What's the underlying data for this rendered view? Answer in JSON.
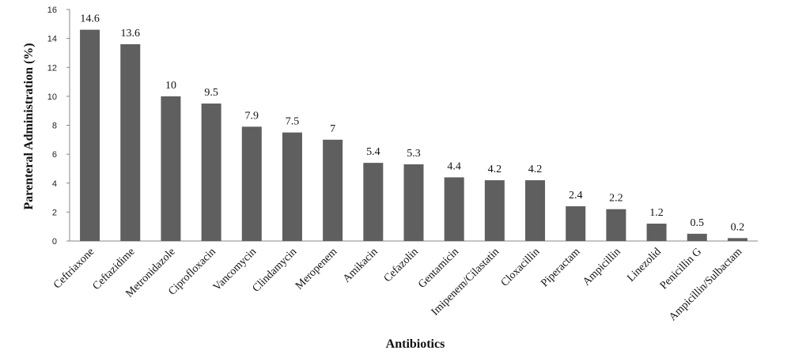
{
  "chart_data": {
    "type": "bar",
    "title": "",
    "xlabel": "Antibiotics",
    "ylabel": "Parenteral Administration (%)",
    "ylim": [
      0,
      16
    ],
    "yticks": [
      0,
      2,
      4,
      6,
      8,
      10,
      12,
      14,
      16
    ],
    "grid": false,
    "legend": "none",
    "bar_color": "#5f5f5f",
    "categories": [
      "Ceftriaxone",
      "Ceftazidime",
      "Metronidazole",
      "Ciprofloxacin",
      "Vancomycin",
      "Clindamycin",
      "Meropenem",
      "Amikacin",
      "Cefazolin",
      "Gentamicin",
      "Imipenem/Cilastatin",
      "Cloxacillin",
      "Piperactam",
      "Ampicillin",
      "Linezolid",
      "Penicillin G",
      "Ampicillin/Sulbactam"
    ],
    "values": [
      14.6,
      13.6,
      10,
      9.5,
      7.9,
      7.5,
      7,
      5.4,
      5.3,
      4.4,
      4.2,
      4.2,
      2.4,
      2.2,
      1.2,
      0.5,
      0.2
    ],
    "value_labels": [
      "14.6",
      "13.6",
      "10",
      "9.5",
      "7.9",
      "7.5",
      "7",
      "5.4",
      "5.3",
      "4.4",
      "4.2",
      "4.2",
      "2.4",
      "2.2",
      "1.2",
      "0.5",
      "0.2"
    ]
  }
}
